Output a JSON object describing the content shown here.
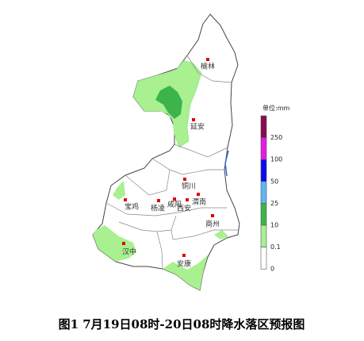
{
  "legend": {
    "title": "单位:mm",
    "bins": [
      {
        "color": "#8b0a50",
        "label": "250"
      },
      {
        "color": "#e619e6",
        "label": "100"
      },
      {
        "color": "#0a0af0",
        "label": "50"
      },
      {
        "color": "#60b4f0",
        "label": "25"
      },
      {
        "color": "#3cb44b",
        "label": "10"
      },
      {
        "color": "#a8f090",
        "label": "0.1"
      },
      {
        "color": "#ffffff",
        "label": "0"
      }
    ]
  },
  "cities": [
    {
      "name": "榆林",
      "marker": [
        262,
        75
      ],
      "text": [
        262,
        84
      ]
    },
    {
      "name": "延安",
      "marker": [
        244,
        151
      ],
      "text": [
        249,
        160
      ]
    },
    {
      "name": "铜川",
      "marker": [
        233,
        226
      ],
      "text": [
        238,
        235
      ]
    },
    {
      "name": "宝鸡",
      "marker": [
        158,
        252
      ],
      "text": [
        166,
        261
      ]
    },
    {
      "name": "杨凌",
      "marker": [
        200,
        253
      ],
      "text": [
        199,
        263
      ]
    },
    {
      "name": "咸阳",
      "marker": [
        220,
        251
      ],
      "text": [
        220,
        258
      ]
    },
    {
      "name": "西安",
      "marker": [
        236,
        252
      ],
      "text": [
        232,
        263
      ]
    },
    {
      "name": "渭南",
      "marker": [
        250,
        245
      ],
      "text": [
        251,
        255
      ]
    },
    {
      "name": "商州",
      "marker": [
        268,
        272
      ],
      "text": [
        268,
        283
      ]
    },
    {
      "name": "汉中",
      "marker": [
        156,
        307
      ],
      "text": [
        163,
        318
      ]
    },
    {
      "name": "安康",
      "marker": [
        232,
        322
      ],
      "text": [
        232,
        333
      ]
    }
  ],
  "caption": "图1  7月19日08时-20日08时降水落区预报图"
}
